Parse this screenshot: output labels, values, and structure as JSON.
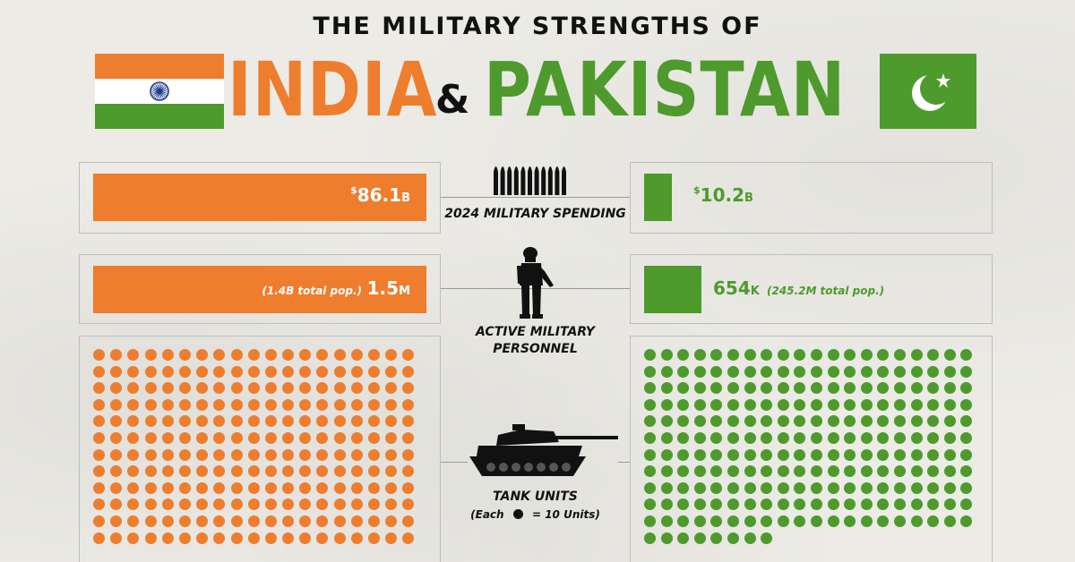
{
  "title": {
    "line1": "THE MILITARY STRENGTHS OF",
    "country_a": "INDIA",
    "amp": "&",
    "country_b": "PAKISTAN"
  },
  "colors": {
    "india": "#ee7d2e",
    "pakistan": "#4e9a2c"
  },
  "icons": [
    "india-flag-icon",
    "pakistan-flag-icon",
    "bullets-icon",
    "soldier-icon",
    "tank-icon",
    "dot-legend-icon"
  ],
  "sections": {
    "spending": {
      "label": "2024 MILITARY SPENDING"
    },
    "personnel": {
      "label_line1": "ACTIVE MILITARY",
      "label_line2": "PERSONNEL"
    },
    "tanks": {
      "label": "TANK UNITS",
      "legend_prefix": "(Each",
      "legend_suffix": "= 10 Units)"
    }
  },
  "chart_data": [
    {
      "type": "bar",
      "title": "2024 MILITARY SPENDING",
      "categories": [
        "India",
        "Pakistan"
      ],
      "values": [
        86.1,
        10.2
      ],
      "value_labels": [
        {
          "prefix": "$",
          "number": "86.1",
          "suffix": "B"
        },
        {
          "prefix": "$",
          "number": "10.2",
          "suffix": "B"
        }
      ]
    },
    {
      "type": "bar",
      "title": "ACTIVE MILITARY PERSONNEL",
      "categories": [
        "India",
        "Pakistan"
      ],
      "values": [
        1500000,
        654000
      ],
      "value_labels": [
        {
          "number": "1.5",
          "suffix": "M",
          "note": "(1.4B total pop.)"
        },
        {
          "number": "654",
          "suffix": "K",
          "note": "(245.2M total pop.)"
        }
      ]
    },
    {
      "type": "waffle",
      "title": "TANK UNITS",
      "unit": 10,
      "categories": [
        "India",
        "Pakistan"
      ],
      "visible_dots": [
        228,
        228
      ]
    }
  ]
}
